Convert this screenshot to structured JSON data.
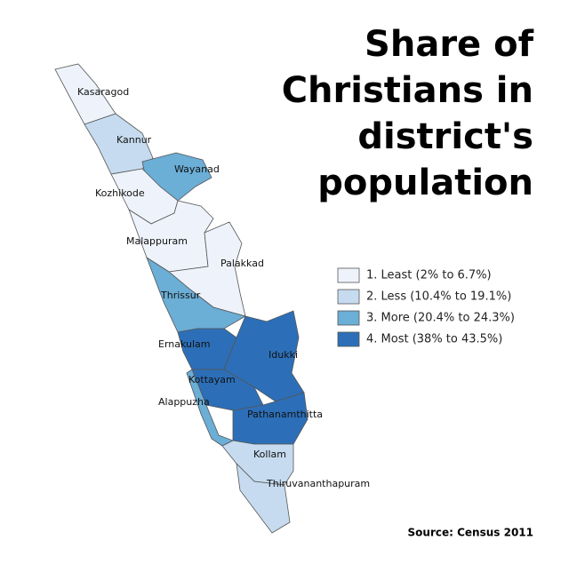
{
  "title": [
    "Share of",
    "Christians in",
    "district's",
    "population"
  ],
  "legend": [
    {
      "label": "1. Least (2% to 6.7%)",
      "color": "#eef3fb"
    },
    {
      "label": "2. Less (10.4% to 19.1%)",
      "color": "#c6dbef"
    },
    {
      "label": "3. More (20.4% to 24.3%)",
      "color": "#6baed6"
    },
    {
      "label": "4. Most (38% to 43.5%)",
      "color": "#2c6fb8"
    }
  ],
  "districts": [
    {
      "name": "Kasaragod",
      "color": "#eef3fb"
    },
    {
      "name": "Kannur",
      "color": "#c6dbef"
    },
    {
      "name": "Wayanad",
      "color": "#6baed6"
    },
    {
      "name": "Kozhikode",
      "color": "#eef3fb"
    },
    {
      "name": "Malappuram",
      "color": "#eef3fb"
    },
    {
      "name": "Palakkad",
      "color": "#eef3fb"
    },
    {
      "name": "Thrissur",
      "color": "#6baed6"
    },
    {
      "name": "Ernakulam",
      "color": "#2c6fb8"
    },
    {
      "name": "Idukki",
      "color": "#2c6fb8"
    },
    {
      "name": "Kottayam",
      "color": "#2c6fb8"
    },
    {
      "name": "Alappuzha",
      "color": "#6baed6"
    },
    {
      "name": "Pathanamthitta",
      "color": "#2c6fb8"
    },
    {
      "name": "Kollam",
      "color": "#c6dbef"
    },
    {
      "name": "Thiruvananthapuram",
      "color": "#c6dbef"
    }
  ],
  "source": "Source: Census 2011"
}
